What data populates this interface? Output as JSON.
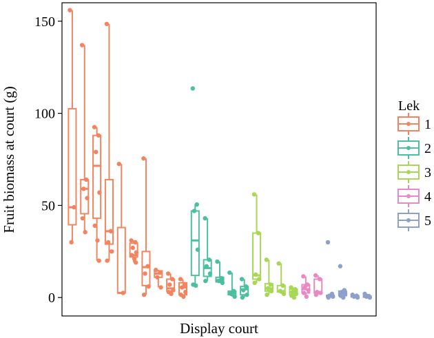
{
  "chart_data": {
    "type": "boxplot",
    "title": "",
    "xlabel": "Display court",
    "ylabel": "Fruit biomass at court (g)",
    "ylim": [
      -10,
      160
    ],
    "yticks": [
      0,
      50,
      100,
      150
    ],
    "x_ticks_shown": false,
    "legend": {
      "title": "Lek",
      "entries": [
        "1",
        "2",
        "3",
        "4",
        "5"
      ],
      "placement": "right"
    },
    "colors": {
      "1": "#F4845F",
      "2": "#4CBFA0",
      "3": "#A6D854",
      "4": "#E78AC3",
      "5": "#8DA0CB"
    },
    "courts": [
      {
        "lek": "1",
        "stats": [
          30,
          39.5,
          49,
          102.5,
          156
        ],
        "points": [
          156,
          49,
          30
        ]
      },
      {
        "lek": "1",
        "stats": [
          35.5,
          45.5,
          59,
          64,
          137
        ],
        "points": [
          137,
          64,
          59,
          54,
          43,
          35.5
        ]
      },
      {
        "lek": "1",
        "stats": [
          20,
          43,
          71.5,
          88,
          92.5
        ],
        "points": [
          92.5,
          88,
          79,
          57,
          39,
          31,
          20
        ]
      },
      {
        "lek": "1",
        "stats": [
          20,
          29,
          36,
          64,
          148.5
        ],
        "points": [
          148.5,
          36,
          30,
          25,
          20
        ]
      },
      {
        "lek": "1",
        "stats": [
          2.5,
          2.5,
          2.5,
          38,
          72.5
        ],
        "points": [
          72.5,
          2.5
        ]
      },
      {
        "lek": "1",
        "stats": [
          19,
          22,
          23,
          29.5,
          31
        ],
        "points": [
          31,
          30,
          27,
          24.5,
          23,
          21,
          19
        ]
      },
      {
        "lek": "1",
        "stats": [
          1.5,
          6.5,
          16.5,
          25,
          75.5
        ],
        "points": [
          75.5,
          17,
          13,
          6,
          1.5
        ]
      },
      {
        "lek": "1",
        "stats": [
          5.5,
          11,
          13,
          14.5,
          15
        ],
        "points": [
          15,
          13.5,
          11,
          5.5
        ]
      },
      {
        "lek": "1",
        "stats": [
          2,
          3.5,
          5,
          10,
          13
        ],
        "points": [
          13,
          10,
          7,
          4,
          3,
          2
        ]
      },
      {
        "lek": "1",
        "stats": [
          0.5,
          1.5,
          5.5,
          8,
          10
        ],
        "points": [
          10,
          7,
          5.5,
          3,
          1.5,
          0.5
        ]
      },
      {
        "lek": "2",
        "stats": [
          6.5,
          12,
          31,
          47,
          50.5
        ],
        "points": [
          113.5,
          50.5,
          47,
          26,
          7,
          6.5
        ]
      },
      {
        "lek": "2",
        "stats": [
          9,
          11.5,
          16,
          20.5,
          43
        ],
        "points": [
          43,
          20.5,
          17,
          13,
          9
        ]
      },
      {
        "lek": "2",
        "stats": [
          8,
          8.5,
          9.5,
          11,
          19.5
        ],
        "points": [
          19.5,
          10.5,
          9,
          8
        ]
      },
      {
        "lek": "2",
        "stats": [
          0.5,
          1.5,
          2.5,
          3.5,
          13.5
        ],
        "points": [
          13.5,
          3.5,
          2,
          0.5
        ]
      },
      {
        "lek": "2",
        "stats": [
          0,
          1.5,
          4.5,
          6,
          10
        ],
        "points": [
          10,
          6,
          4,
          1.5,
          0
        ]
      },
      {
        "lek": "3",
        "stats": [
          8,
          10,
          12,
          35,
          56
        ],
        "points": [
          56,
          35,
          12.5,
          10,
          8
        ]
      },
      {
        "lek": "3",
        "stats": [
          1.5,
          3.5,
          5,
          7.5,
          20.5
        ],
        "points": [
          20.5,
          7,
          5,
          3.5,
          1.5
        ]
      },
      {
        "lek": "3",
        "stats": [
          2,
          3,
          3.5,
          6.5,
          18.5
        ],
        "points": [
          18.5,
          6.5,
          3.5,
          2
        ]
      },
      {
        "lek": "3",
        "stats": [
          0,
          1.5,
          3,
          4.5,
          5.5
        ],
        "points": [
          5.5,
          4.5,
          3,
          2,
          1,
          0
        ]
      },
      {
        "lek": "4",
        "stats": [
          0.5,
          2.5,
          4.5,
          7,
          11.5
        ],
        "points": [
          11.5,
          7,
          5.5,
          4,
          2.5,
          0.5
        ]
      },
      {
        "lek": "4",
        "stats": [
          1.5,
          2.5,
          3,
          10,
          12
        ],
        "points": [
          12,
          10,
          3,
          2.5,
          1.5
        ]
      },
      {
        "lek": "5",
        "stats": [
          0,
          0.5,
          0.8,
          1.2,
          2
        ],
        "points": [
          30,
          2,
          1,
          0.5,
          0
        ]
      },
      {
        "lek": "5",
        "stats": [
          0,
          1,
          2,
          3.5,
          4
        ],
        "points": [
          17,
          4,
          3,
          2,
          1,
          0
        ]
      },
      {
        "lek": "5",
        "stats": [
          0,
          0.3,
          0.6,
          1,
          1.5
        ],
        "points": [
          1.5,
          1,
          0.5,
          0
        ]
      },
      {
        "lek": "5",
        "stats": [
          0,
          0.2,
          0.5,
          0.8,
          2
        ],
        "points": [
          2,
          0.8,
          0.5,
          0
        ]
      }
    ]
  }
}
